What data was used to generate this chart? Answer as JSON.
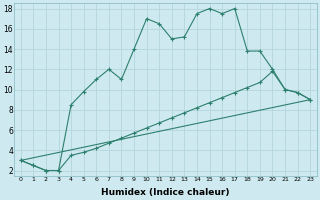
{
  "xlabel": "Humidex (Indice chaleur)",
  "background_color": "#ceeaf0",
  "grid_color": "#b8d8e0",
  "line_color": "#2d7f6e",
  "xlim": [
    -0.5,
    23.5
  ],
  "ylim": [
    1.5,
    18.5
  ],
  "xticks": [
    0,
    1,
    2,
    3,
    4,
    5,
    6,
    7,
    8,
    9,
    10,
    11,
    12,
    13,
    14,
    15,
    16,
    17,
    18,
    19,
    20,
    21,
    22,
    23
  ],
  "yticks": [
    2,
    4,
    6,
    8,
    10,
    12,
    14,
    16,
    18
  ],
  "line1_x": [
    0,
    1,
    2,
    3,
    4,
    5,
    6,
    7,
    8,
    9,
    10,
    11,
    12,
    13,
    14,
    15,
    16,
    17,
    18,
    19,
    20,
    21,
    22,
    23
  ],
  "line1_y": [
    3,
    2.5,
    2,
    2,
    8.5,
    9.8,
    11,
    12,
    11,
    14,
    17,
    16.5,
    15,
    15.2,
    17.5,
    18,
    17.5,
    18,
    13.8,
    13.8,
    12,
    10,
    9.7,
    9
  ],
  "line2_x": [
    0,
    1,
    2,
    3,
    4,
    5,
    6,
    7,
    8,
    9,
    10,
    11,
    12,
    13,
    14,
    15,
    16,
    17,
    18,
    19,
    20,
    21,
    22,
    23
  ],
  "line2_y": [
    3,
    2.5,
    2,
    2,
    3.5,
    3.8,
    4.2,
    4.7,
    5.2,
    5.7,
    6.2,
    6.7,
    7.2,
    7.7,
    8.2,
    8.7,
    9.2,
    9.7,
    10.2,
    10.7,
    11.8,
    10,
    9.7,
    9
  ],
  "line3_x": [
    0,
    23
  ],
  "line3_y": [
    3,
    9
  ]
}
